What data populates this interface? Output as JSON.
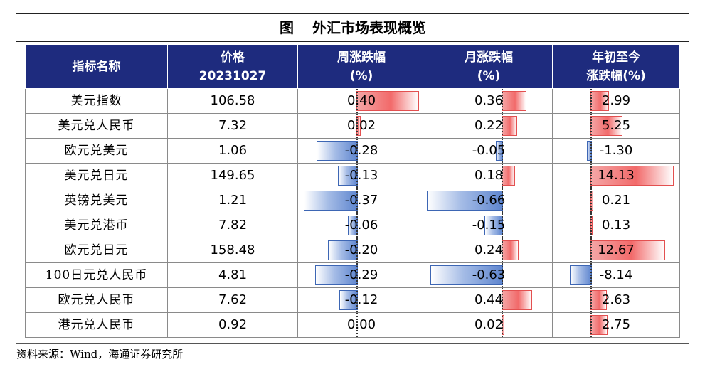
{
  "title": {
    "prefix": "图",
    "text": "外汇市场表现概览"
  },
  "headers": {
    "name": "指标名称",
    "price_l1": "价格",
    "price_l2": "20231027",
    "week_l1": "周涨跌幅",
    "week_l2": "(%)",
    "month_l1": "月涨跌幅",
    "month_l2": "(%)",
    "ytd_l1": "年初至今",
    "ytd_l2": "涨跌幅(%)"
  },
  "rows": [
    {
      "name": "美元指数",
      "price": "106.58",
      "week": "0.40",
      "month": "0.36",
      "ytd": "2.99"
    },
    {
      "name": "美元兑人民币",
      "price": "7.32",
      "week": "0.02",
      "month": "0.22",
      "ytd": "5.25"
    },
    {
      "name": "欧元兑美元",
      "price": "1.06",
      "week": "-0.28",
      "month": "-0.05",
      "ytd": "-1.30"
    },
    {
      "name": "美元兑日元",
      "price": "149.65",
      "week": "-0.13",
      "month": "0.18",
      "ytd": "14.13"
    },
    {
      "name": "英镑兑美元",
      "price": "1.21",
      "week": "-0.37",
      "month": "-0.66",
      "ytd": "0.21"
    },
    {
      "name": "美元兑港币",
      "price": "7.82",
      "week": "-0.06",
      "month": "-0.15",
      "ytd": "0.13"
    },
    {
      "name": "欧元兑日元",
      "price": "158.48",
      "week": "-0.20",
      "month": "0.24",
      "ytd": "12.67"
    },
    {
      "name": "100日元兑人民币",
      "price": "4.81",
      "week": "-0.29",
      "month": "-0.63",
      "ytd": "-8.14"
    },
    {
      "name": "欧元兑人民币",
      "price": "7.62",
      "week": "-0.12",
      "month": "0.44",
      "ytd": "2.63"
    },
    {
      "name": "港元兑人民币",
      "price": "0.92",
      "week": "0.00",
      "month": "0.02",
      "ytd": "2.75"
    }
  ],
  "source": "资料来源：Wind，海通证券研究所",
  "colors": {
    "header_bg": "#1e2b7e",
    "positive_bar": "#f26a6a",
    "negative_bar": "#5f86cf"
  }
}
